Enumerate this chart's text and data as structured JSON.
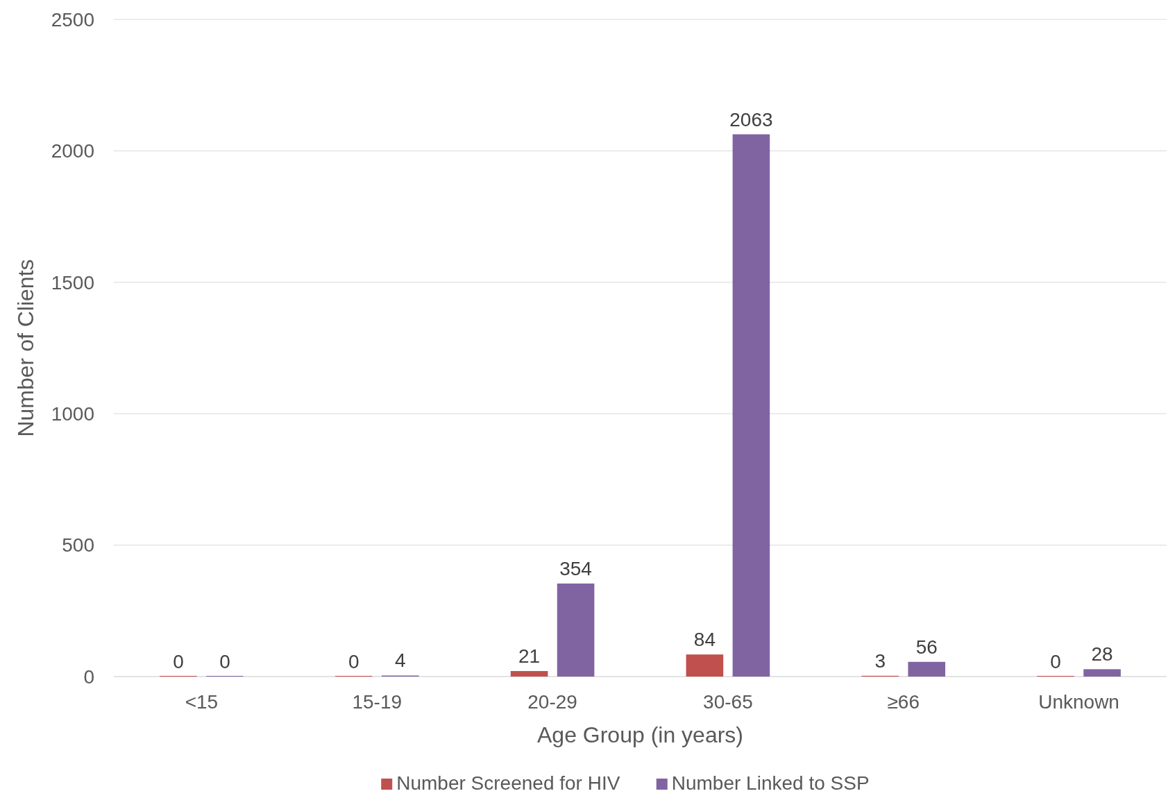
{
  "chart_data": {
    "type": "bar",
    "xlabel": "Age Group (in years)",
    "ylabel": "Number of Clients",
    "categories": [
      "<15",
      "15-19",
      "20-29",
      "30-65",
      "≥66",
      "Unknown"
    ],
    "series": [
      {
        "name": "Number Screened for HIV",
        "color": "#c0504d",
        "values": [
          0,
          0,
          21,
          84,
          3,
          0
        ]
      },
      {
        "name": "Number Linked to SSP",
        "color": "#8064a2",
        "values": [
          0,
          4,
          354,
          2063,
          56,
          28
        ]
      }
    ],
    "ylim": [
      0,
      2500
    ],
    "yticks": [
      0,
      500,
      1000,
      1500,
      2000,
      2500
    ],
    "grid": "y",
    "legend": "bottom",
    "data_labels": true
  }
}
